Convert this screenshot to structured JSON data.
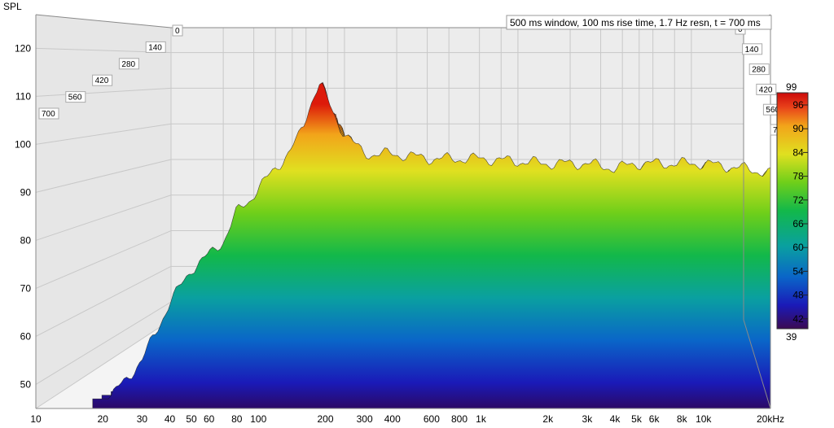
{
  "chart_data": {
    "type": "area",
    "subtype": "waterfall-3d",
    "title": "500 ms window, 100 ms rise time,  1.7 Hz resn, t = 700 ms",
    "ylabel": "SPL",
    "xlabel_unit": "kHz",
    "x_scale": "log",
    "xlim": [
      10,
      20000
    ],
    "ylim": [
      45,
      127
    ],
    "x_ticks": [
      {
        "v": 10,
        "label": "10"
      },
      {
        "v": 20,
        "label": "20"
      },
      {
        "v": 30,
        "label": "30"
      },
      {
        "v": 40,
        "label": "40"
      },
      {
        "v": 50,
        "label": "50"
      },
      {
        "v": 60,
        "label": "60"
      },
      {
        "v": 80,
        "label": "80"
      },
      {
        "v": 100,
        "label": "100"
      },
      {
        "v": 200,
        "label": "200"
      },
      {
        "v": 300,
        "label": "300"
      },
      {
        "v": 400,
        "label": "400"
      },
      {
        "v": 600,
        "label": "600"
      },
      {
        "v": 800,
        "label": "800"
      },
      {
        "v": 1000,
        "label": "1k"
      },
      {
        "v": 2000,
        "label": "2k"
      },
      {
        "v": 3000,
        "label": "3k"
      },
      {
        "v": 4000,
        "label": "4k"
      },
      {
        "v": 5000,
        "label": "5k"
      },
      {
        "v": 6000,
        "label": "6k"
      },
      {
        "v": 8000,
        "label": "8k"
      },
      {
        "v": 10000,
        "label": "10k"
      },
      {
        "v": 20000,
        "label": "20kHz"
      }
    ],
    "y_ticks": [
      50,
      60,
      70,
      80,
      90,
      100,
      110,
      120
    ],
    "time_ticks_ms": [
      0,
      140,
      280,
      420,
      560,
      700
    ],
    "front_slice_ms": 0,
    "back_slice_ms": 700,
    "front_slice_spl": [
      [
        18,
        43
      ],
      [
        30,
        55
      ],
      [
        40,
        67
      ],
      [
        50,
        74
      ],
      [
        60,
        77
      ],
      [
        70,
        80
      ],
      [
        80,
        86
      ],
      [
        90,
        88
      ],
      [
        100,
        91
      ],
      [
        110,
        93
      ],
      [
        120,
        95
      ],
      [
        130,
        97
      ],
      [
        140,
        99
      ],
      [
        150,
        101
      ],
      [
        160,
        104
      ],
      [
        170,
        108
      ],
      [
        180,
        111
      ],
      [
        190,
        113
      ],
      [
        200,
        110
      ],
      [
        230,
        104
      ],
      [
        270,
        100
      ],
      [
        300,
        98
      ],
      [
        400,
        98
      ],
      [
        600,
        97
      ],
      [
        1000,
        97
      ],
      [
        2000,
        96
      ],
      [
        3000,
        96
      ],
      [
        4000,
        95
      ],
      [
        5000,
        96
      ],
      [
        8000,
        96
      ],
      [
        10000,
        96
      ],
      [
        15000,
        95
      ],
      [
        20000,
        94
      ]
    ],
    "color_scale": {
      "min_label": "39",
      "max_label": "99",
      "ticks": [
        "96",
        "90",
        "84",
        "78",
        "72",
        "66",
        "60",
        "54",
        "48",
        "42"
      ],
      "colors": [
        "#3b0a52",
        "#1a1ab8",
        "#0a66c8",
        "#0aa0a0",
        "#12b84a",
        "#6fcf1a",
        "#e0e020",
        "#f2a41a",
        "#e8401a",
        "#cc0a0a"
      ]
    },
    "grid": true,
    "legend": "right"
  }
}
